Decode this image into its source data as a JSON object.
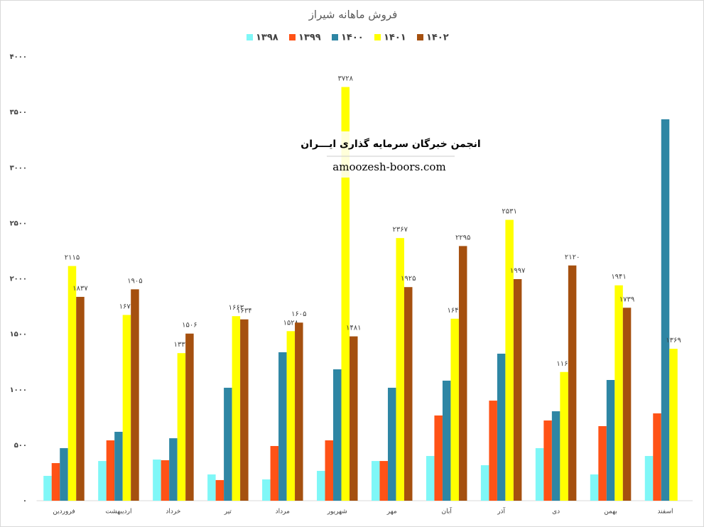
{
  "chart_data": {
    "type": "bar",
    "title": "فروش ماهانه شیراز",
    "categories": [
      "فروردین",
      "اردیبهشت",
      "خرداد",
      "تیر",
      "مرداد",
      "شهریور",
      "مهر",
      "آبان",
      "آذر",
      "دی",
      "بهمن",
      "اسفند"
    ],
    "series": [
      {
        "name": "۱۳۹۸",
        "color": "#7ff7f7",
        "values": [
          224,
          358,
          371,
          237,
          192,
          269,
          358,
          403,
          320,
          474,
          237,
          403
        ]
      },
      {
        "name": "۱۳۹۹",
        "color": "#ff5216",
        "values": [
          339,
          544,
          365,
          186,
          493,
          544,
          358,
          768,
          902,
          723,
          672,
          787
        ]
      },
      {
        "name": "۱۴۰۰",
        "color": "#2e86a4",
        "values": [
          474,
          621,
          563,
          1018,
          1338,
          1184,
          1018,
          1082,
          1325,
          806,
          1088,
          3437
        ]
      },
      {
        "name": "۱۴۰۱",
        "color": "#ffff00",
        "values": [
          2115,
          1674,
          1330,
          1663,
          1528,
          3728,
          2367,
          1640,
          2531,
          1160,
          1941,
          1369
        ],
        "value_labels": [
          "۲۱۱۵",
          "۱۶۷۴",
          "۱۳۳۰",
          "۱۶۶۳",
          "۱۵۲۸",
          "۳۷۲۸",
          "۲۳۶۷",
          "۱۶۴۰",
          "۲۵۳۱",
          "۱۱۶۰",
          "۱۹۴۱",
          "۱۳۶۹"
        ]
      },
      {
        "name": "۱۴۰۲",
        "color": "#a5500f",
        "values": [
          1837,
          1905,
          1506,
          1634,
          1605,
          1481,
          1925,
          2295,
          1997,
          2120,
          1739,
          null
        ],
        "value_labels": [
          "۱۸۳۷",
          "۱۹۰۵",
          "۱۵۰۶",
          "۱۶۳۴",
          "۱۶۰۵",
          "۱۴۸۱",
          "۱۹۲۵",
          "۲۲۹۵",
          "۱۹۹۷",
          "۲۱۲۰",
          "۱۷۳۹",
          null
        ]
      }
    ],
    "ylim": [
      0,
      4000
    ],
    "yticks": [
      {
        "value": 0,
        "label": "۰"
      },
      {
        "value": 500,
        "label": "۵۰۰"
      },
      {
        "value": 1000,
        "label": "۱۰۰۰"
      },
      {
        "value": 1500,
        "label": "۱۵۰۰"
      },
      {
        "value": 2000,
        "label": "۲۰۰۰"
      },
      {
        "value": 2500,
        "label": "۲۵۰۰"
      },
      {
        "value": 3000,
        "label": "۳۰۰۰"
      },
      {
        "value": 3500,
        "label": "۳۵۰۰"
      },
      {
        "value": 4000,
        "label": "۴۰۰۰"
      }
    ],
    "grid": false,
    "legend": "top"
  },
  "watermark": {
    "title": "انجمن خبرگان سرمایه گذاری ایـــران",
    "url": "amoozesh-boors.com"
  }
}
